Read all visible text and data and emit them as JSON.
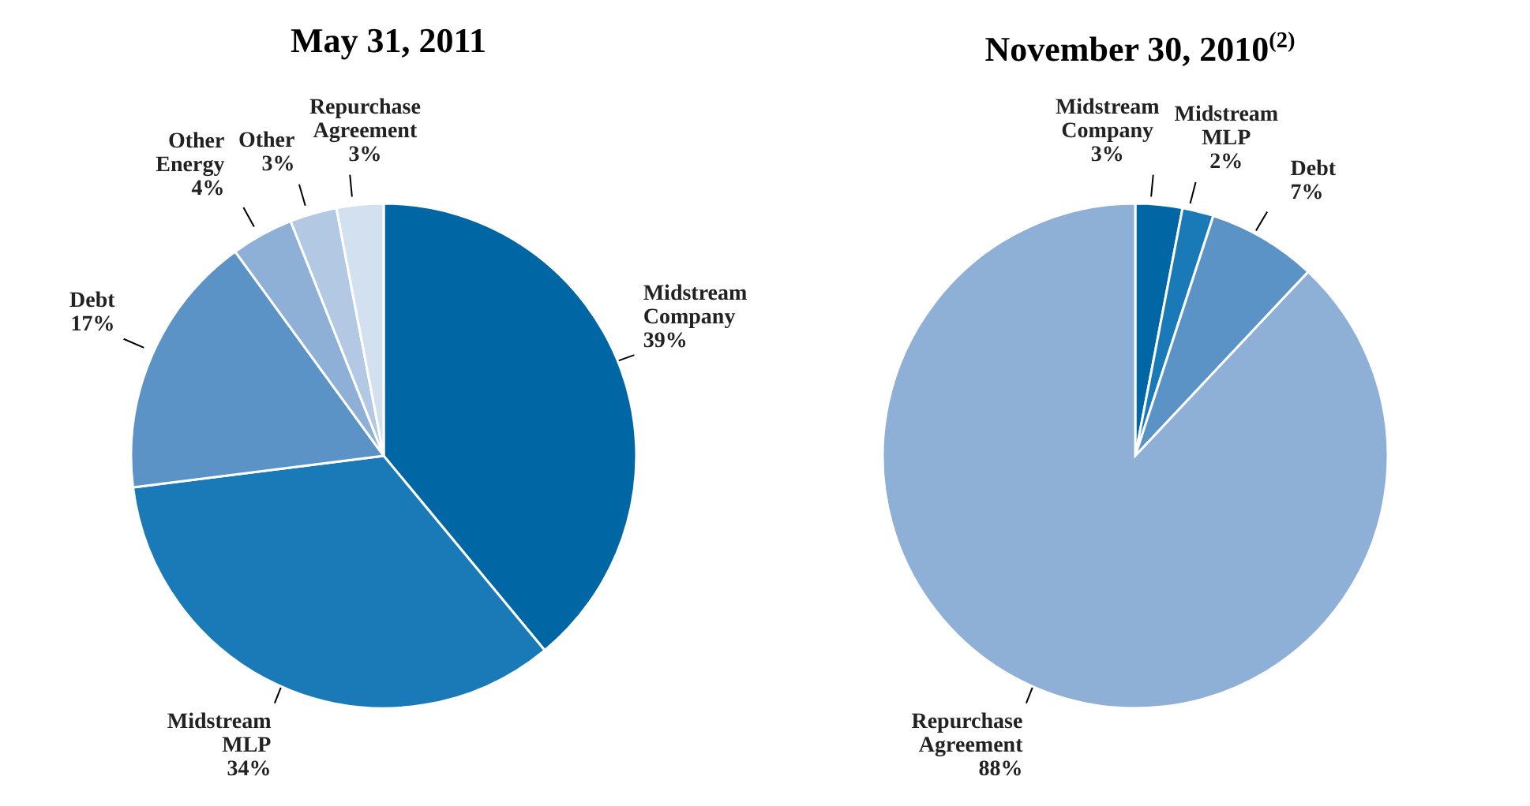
{
  "chart_data": [
    {
      "type": "pie",
      "title": "May 31, 2011",
      "categories": [
        "Midstream Company",
        "Midstream MLP",
        "Debt",
        "Other Energy",
        "Other",
        "Repurchase Agreement"
      ],
      "values": [
        39,
        34,
        17,
        4,
        3,
        3
      ],
      "value_labels": [
        "39%",
        "34%",
        "17%",
        "4%",
        "3%",
        "3%"
      ],
      "colors": [
        "#0066a4",
        "#1a7ab8",
        "#5b93c6",
        "#8eb0d6",
        "#b3c9e3",
        "#d3e0f0"
      ],
      "legend": false
    },
    {
      "type": "pie",
      "title": "November 30, 2010$^{(2)}$",
      "categories": [
        "Midstream Company",
        "Midstream MLP",
        "Debt",
        "Repurchase Agreement"
      ],
      "values": [
        3,
        2,
        7,
        88
      ],
      "value_labels": [
        "3%",
        "2%",
        "7%",
        "88%"
      ],
      "colors": [
        "#0066a4",
        "#1a7ab8",
        "#5b93c6",
        "#8eb0d6"
      ],
      "legend": false
    }
  ]
}
